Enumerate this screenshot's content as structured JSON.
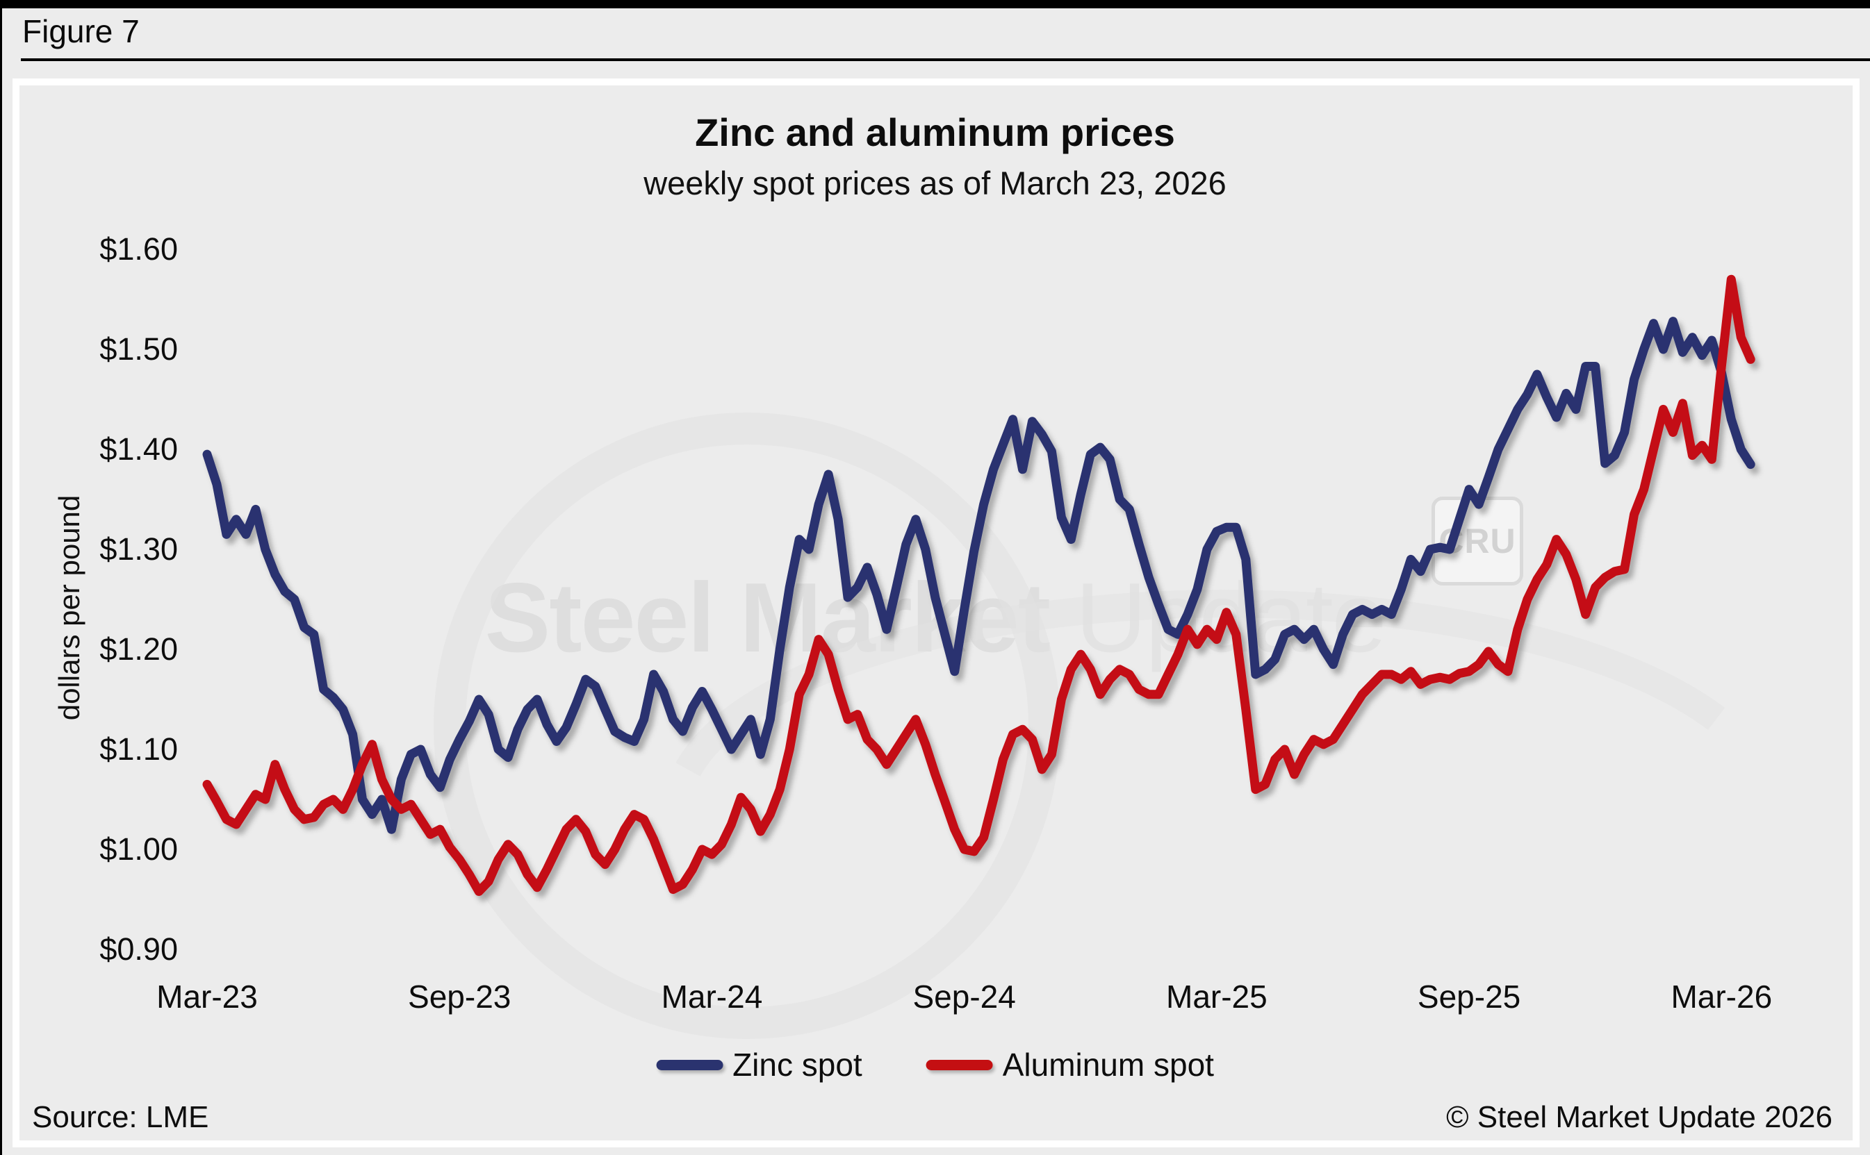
{
  "figure_label": "Figure 7",
  "header": {
    "title": "Zinc and aluminum prices",
    "subtitle": "weekly spot prices as of March 23, 2026"
  },
  "y_axis_title": "dollars per pound",
  "footer": {
    "source": "Source: LME",
    "copyright": "© Steel Market Update 2026"
  },
  "watermark": {
    "text_bold": "Steel Market",
    "text_light": " Update",
    "badge": "CRU"
  },
  "legend": [
    {
      "label": "Zinc spot",
      "color": "#2a336f"
    },
    {
      "label": "Aluminum spot",
      "color": "#c40f12"
    }
  ],
  "colors": {
    "zinc_line": "#2a336f",
    "aluminum_line": "#c40f12",
    "background": "#ececec",
    "panel_border": "#ffffff",
    "text": "#0d0d0d",
    "watermark": "#dfdfdf"
  },
  "chart_data": {
    "type": "line",
    "title": "Zinc and aluminum prices",
    "subtitle": "weekly spot prices as of March 23, 2026",
    "ylabel": "dollars per pound",
    "ylim": [
      0.9,
      1.6
    ],
    "grid": false,
    "legend_position": "bottom-center",
    "x_description": "weekly observations, March 2023 through March 23 2026 (160 points)",
    "x_ticks": [
      {
        "label": "Mar-23",
        "week": 0
      },
      {
        "label": "Sep-23",
        "week": 26
      },
      {
        "label": "Mar-24",
        "week": 52
      },
      {
        "label": "Sep-24",
        "week": 78
      },
      {
        "label": "Mar-25",
        "week": 104
      },
      {
        "label": "Sep-25",
        "week": 130
      },
      {
        "label": "Mar-26",
        "week": 156
      }
    ],
    "y_ticks": [
      {
        "label": "$1.60",
        "value": 1.6
      },
      {
        "label": "$1.50",
        "value": 1.5
      },
      {
        "label": "$1.40",
        "value": 1.4
      },
      {
        "label": "$1.30",
        "value": 1.3
      },
      {
        "label": "$1.20",
        "value": 1.2
      },
      {
        "label": "$1.10",
        "value": 1.1
      },
      {
        "label": "$1.00",
        "value": 1.0
      },
      {
        "label": "$0.90",
        "value": 0.9
      }
    ],
    "series": [
      {
        "name": "Zinc spot",
        "color": "#2a336f",
        "values": [
          1.395,
          1.365,
          1.315,
          1.33,
          1.315,
          1.34,
          1.3,
          1.275,
          1.258,
          1.25,
          1.222,
          1.215,
          1.16,
          1.152,
          1.14,
          1.115,
          1.05,
          1.035,
          1.05,
          1.02,
          1.07,
          1.095,
          1.1,
          1.075,
          1.062,
          1.09,
          1.11,
          1.128,
          1.15,
          1.135,
          1.1,
          1.092,
          1.12,
          1.14,
          1.15,
          1.125,
          1.108,
          1.122,
          1.145,
          1.17,
          1.163,
          1.14,
          1.118,
          1.112,
          1.108,
          1.13,
          1.175,
          1.158,
          1.13,
          1.118,
          1.142,
          1.158,
          1.14,
          1.12,
          1.1,
          1.115,
          1.13,
          1.095,
          1.13,
          1.2,
          1.262,
          1.31,
          1.3,
          1.345,
          1.375,
          1.33,
          1.252,
          1.262,
          1.282,
          1.255,
          1.22,
          1.262,
          1.305,
          1.33,
          1.3,
          1.252,
          1.215,
          1.178,
          1.24,
          1.298,
          1.345,
          1.38,
          1.405,
          1.43,
          1.38,
          1.428,
          1.415,
          1.398,
          1.332,
          1.31,
          1.355,
          1.395,
          1.402,
          1.39,
          1.35,
          1.34,
          1.305,
          1.272,
          1.245,
          1.22,
          1.215,
          1.235,
          1.26,
          1.3,
          1.318,
          1.322,
          1.322,
          1.29,
          1.175,
          1.18,
          1.19,
          1.215,
          1.22,
          1.21,
          1.22,
          1.2,
          1.185,
          1.215,
          1.235,
          1.24,
          1.235,
          1.24,
          1.235,
          1.26,
          1.29,
          1.278,
          1.3,
          1.302,
          1.3,
          1.33,
          1.36,
          1.345,
          1.372,
          1.4,
          1.42,
          1.44,
          1.455,
          1.475,
          1.452,
          1.432,
          1.456,
          1.44,
          1.483,
          1.483,
          1.386,
          1.394,
          1.417,
          1.47,
          1.5,
          1.526,
          1.5,
          1.528,
          1.497,
          1.512,
          1.494,
          1.509,
          1.477,
          1.43,
          1.4,
          1.385
        ]
      },
      {
        "name": "Aluminum spot",
        "color": "#c40f12",
        "values": [
          1.065,
          1.048,
          1.03,
          1.025,
          1.04,
          1.055,
          1.05,
          1.085,
          1.06,
          1.04,
          1.03,
          1.032,
          1.045,
          1.05,
          1.04,
          1.06,
          1.085,
          1.105,
          1.07,
          1.05,
          1.04,
          1.045,
          1.03,
          1.015,
          1.02,
          1.002,
          0.99,
          0.975,
          0.958,
          0.968,
          0.99,
          1.005,
          0.995,
          0.975,
          0.962,
          0.98,
          1.0,
          1.02,
          1.03,
          1.018,
          0.995,
          0.985,
          1.0,
          1.02,
          1.035,
          1.03,
          1.01,
          0.985,
          0.96,
          0.965,
          0.98,
          1.0,
          0.995,
          1.005,
          1.025,
          1.052,
          1.04,
          1.018,
          1.035,
          1.06,
          1.1,
          1.155,
          1.175,
          1.21,
          1.195,
          1.16,
          1.13,
          1.135,
          1.11,
          1.1,
          1.085,
          1.1,
          1.115,
          1.13,
          1.105,
          1.075,
          1.048,
          1.02,
          1.0,
          0.998,
          1.012,
          1.05,
          1.09,
          1.115,
          1.12,
          1.11,
          1.08,
          1.095,
          1.15,
          1.18,
          1.195,
          1.18,
          1.155,
          1.17,
          1.18,
          1.175,
          1.16,
          1.155,
          1.155,
          1.175,
          1.195,
          1.22,
          1.205,
          1.22,
          1.21,
          1.237,
          1.215,
          1.14,
          1.06,
          1.065,
          1.09,
          1.1,
          1.075,
          1.095,
          1.11,
          1.105,
          1.11,
          1.125,
          1.14,
          1.155,
          1.165,
          1.175,
          1.175,
          1.17,
          1.178,
          1.165,
          1.17,
          1.172,
          1.17,
          1.176,
          1.178,
          1.185,
          1.198,
          1.185,
          1.178,
          1.22,
          1.25,
          1.27,
          1.285,
          1.31,
          1.295,
          1.27,
          1.235,
          1.262,
          1.272,
          1.278,
          1.28,
          1.335,
          1.36,
          1.4,
          1.44,
          1.417,
          1.446,
          1.394,
          1.404,
          1.39,
          1.483,
          1.57,
          1.512,
          1.49
        ]
      }
    ]
  }
}
